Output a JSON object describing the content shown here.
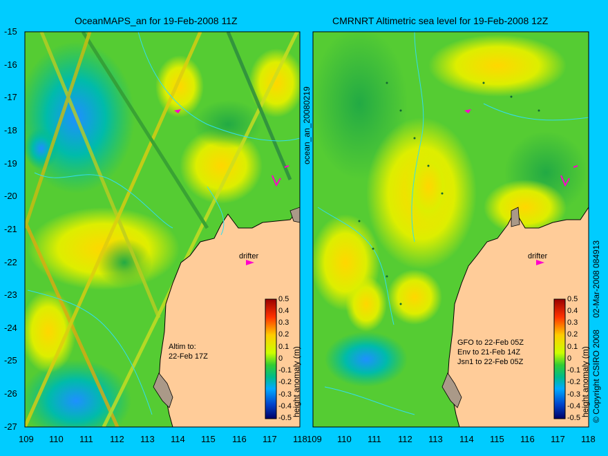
{
  "left_panel": {
    "title": "OceanMAPS_an for 19-Feb-2008 11Z",
    "note_line1": "Altim to:",
    "note_line2": "22-Feb 17Z",
    "drifter_label": "drifter",
    "colorbar_label": "height anomaly (m)"
  },
  "right_panel": {
    "title": "CMRNRT Altimetric sea level  for 19-Feb-2008 12Z",
    "note_line1": "GFO to 22-Feb 05Z",
    "note_line2": "Env to 21-Feb 14Z",
    "note_line3": "Jsn1 to 22-Feb 05Z",
    "drifter_label": "drifter",
    "colorbar_label": "height anomaly (m)"
  },
  "vertical_labels": {
    "middle": "ocean_an_20080219",
    "right_copyright": "© Copyright CSIRO 2008",
    "right_date": "02-Mar-2008 084913"
  },
  "y_ticks": [
    "-15",
    "-16",
    "-17",
    "-18",
    "-19",
    "-20",
    "-21",
    "-22",
    "-23",
    "-24",
    "-25",
    "-26",
    "-27"
  ],
  "x_ticks": [
    "109",
    "110",
    "111",
    "112",
    "113",
    "114",
    "115",
    "116",
    "117",
    "118"
  ],
  "colorbar_ticks": [
    "0.5",
    "0.4",
    "0.3",
    "0.2",
    "0.1",
    "0",
    "-0.1",
    "-0.2",
    "-0.3",
    "-0.4",
    "-0.5"
  ],
  "colors": {
    "background": "#00ccff",
    "land": "#ffcc99",
    "drifter": "#ff00cc"
  }
}
